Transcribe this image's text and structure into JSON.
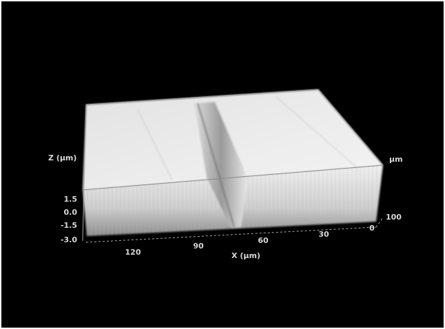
{
  "z_axis": {
    "label": "Z (µm)",
    "ticks": [
      "1.5",
      "0.0",
      "-1.5",
      "-3.0"
    ]
  },
  "x_axis": {
    "label": "X (µm)",
    "ticks": [
      "120",
      "90",
      "60",
      "30",
      "0"
    ]
  },
  "y_axis": {
    "label": "µm",
    "tick": "100"
  }
}
